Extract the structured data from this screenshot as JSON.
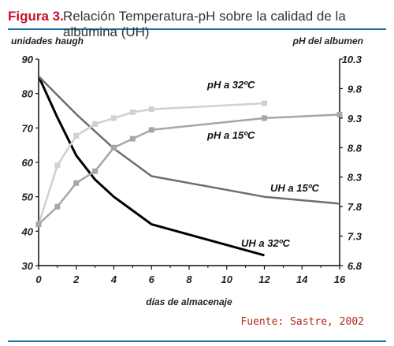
{
  "figure": {
    "label": "Figura 3.",
    "title": "Relación Temperatura-pH sobre la calidad de la albúmina (UH)"
  },
  "source": "Fuente: Sastre, 2002",
  "colors": {
    "accent_rule": "#1f6fa8",
    "label_red": "#c8102e",
    "uh32": "#000000",
    "uh15": "#6e6e6e",
    "ph32": "#d0d0d0",
    "ph15": "#a6a6a6"
  },
  "chart_data": {
    "type": "line",
    "title": "Relación Temperatura-pH sobre la calidad de la albúmina (UH)",
    "xlabel": "días de almacenaje",
    "ylabel_left": "unidades haugh",
    "ylabel_right": "pH del albumen",
    "xlim": [
      0,
      16
    ],
    "ylim_left": [
      30,
      90
    ],
    "ylim_right": [
      6.8,
      10.3
    ],
    "x_ticks": [
      "0",
      "2",
      "4",
      "6",
      "8",
      "10",
      "12",
      "14",
      "16"
    ],
    "y_left_ticks": [
      "30",
      "40",
      "50",
      "60",
      "70",
      "80",
      "90"
    ],
    "y_right_ticks": [
      "6.8",
      "7.3",
      "7.8",
      "8.3",
      "8.8",
      "9.3",
      "9.8",
      "10.3"
    ],
    "grid": false,
    "series": [
      {
        "name": "UH a 32ºC",
        "axis": "left",
        "markers": false,
        "x": [
          0,
          1,
          2,
          3,
          4,
          5,
          6,
          8,
          10,
          12
        ],
        "y": [
          85,
          73,
          62,
          55,
          50,
          46,
          42,
          39,
          36,
          33
        ]
      },
      {
        "name": "UH a 15ºC",
        "axis": "left",
        "markers": false,
        "x": [
          0,
          2,
          4,
          6,
          12,
          16
        ],
        "y": [
          85,
          74,
          64,
          56,
          50,
          48
        ]
      },
      {
        "name": "pH a 32ºC",
        "axis": "right",
        "markers": true,
        "x": [
          0,
          1,
          2,
          3,
          4,
          5,
          6,
          12
        ],
        "y": [
          7.5,
          8.5,
          9.0,
          9.2,
          9.3,
          9.4,
          9.45,
          9.55
        ]
      },
      {
        "name": "pH a 15ºC",
        "axis": "right",
        "markers": true,
        "x": [
          0,
          1,
          2,
          3,
          4,
          5,
          6,
          12,
          16
        ],
        "y": [
          7.5,
          7.8,
          8.2,
          8.4,
          8.8,
          8.95,
          9.1,
          9.3,
          9.36
        ]
      }
    ]
  }
}
